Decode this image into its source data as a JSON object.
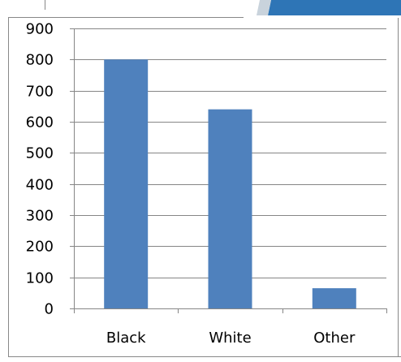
{
  "chart_data": {
    "type": "bar",
    "title": "",
    "xlabel": "",
    "ylabel": "",
    "categories": [
      "Black",
      "White",
      "Other"
    ],
    "values": [
      800,
      640,
      65
    ],
    "ylim": [
      0,
      900
    ],
    "yticks": [
      0,
      100,
      200,
      300,
      400,
      500,
      600,
      700,
      800,
      900
    ],
    "grid": true,
    "bar_color": "#4f81bd",
    "accent_color": "#2e75b6",
    "grid_color": "#868686",
    "axis_color": "#868686"
  }
}
